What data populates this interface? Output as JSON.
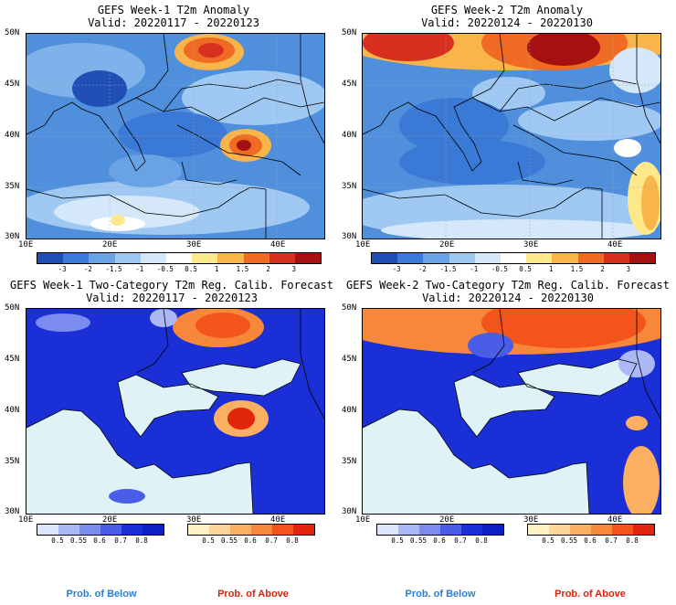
{
  "panels": [
    {
      "title": "GEFS Week-1 T2m Anomaly",
      "valid": "Valid: 20220117 - 20220123"
    },
    {
      "title": "GEFS Week-2 T2m Anomaly",
      "valid": "Valid: 20220124 - 20220130"
    },
    {
      "title": "GEFS Week-1 Two-Category T2m Reg. Calib. Forecast",
      "valid": "Valid: 20220117 - 20220123"
    },
    {
      "title": "GEFS Week-2 Two-Category T2m Reg. Calib. Forecast",
      "valid": "Valid: 20220124 - 20220130"
    }
  ],
  "lat_labels": [
    "50N",
    "45N",
    "40N",
    "35N",
    "30N"
  ],
  "lon_labels": [
    "10E",
    "20E",
    "30E",
    "40E"
  ],
  "anomaly_scale": {
    "labels": [
      "-3",
      "-2",
      "-1.5",
      "-1",
      "-0.5",
      "0.5",
      "1",
      "1.5",
      "2",
      "3"
    ],
    "colors": [
      "#1f4fb4",
      "#3b79d6",
      "#6aa2e6",
      "#9fc8f2",
      "#d4e8fa",
      "#ffffff",
      "#fde98a",
      "#f9b54a",
      "#ef6a22",
      "#d7301f",
      "#a51010"
    ]
  },
  "prob_below_scale": {
    "labels": [
      "0.5",
      "0.55",
      "0.6",
      "0.7",
      "0.8"
    ],
    "colors": [
      "#dbe6fb",
      "#aab8f5",
      "#7b8bef",
      "#4a5de6",
      "#1a2fd6",
      "#0b1fc4"
    ]
  },
  "prob_above_scale": {
    "labels": [
      "0.5",
      "0.55",
      "0.6",
      "0.7",
      "0.8"
    ],
    "colors": [
      "#fff2c4",
      "#fdd79a",
      "#fbb061",
      "#f7883b",
      "#f2541c",
      "#e2260e"
    ]
  },
  "legend": {
    "below": "Prob. of Below",
    "above": "Prob. of Above"
  },
  "colors": {
    "sea_light": "#dff3f6",
    "prob_blue": "#1a2fd6",
    "prob_red": "#ef4a16",
    "below_text": "#2a7fd4",
    "above_text": "#e0210c"
  }
}
